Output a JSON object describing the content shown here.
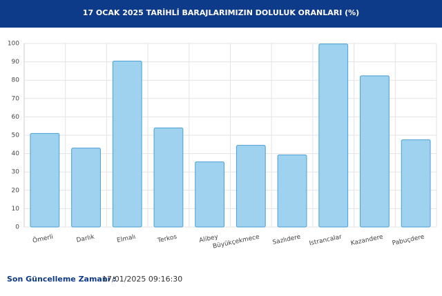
{
  "chart_data": {
    "type": "bar",
    "title": "17 OCAK 2025 TARİHLİ BARAJLARIMIZIN DOLULUK ORANLARI (%)",
    "categories": [
      "Ömerli",
      "Darlık",
      "Elmalı",
      "Terkos",
      "Alibey",
      "Büyükçekmece",
      "Sazlıdere",
      "Istrancalar",
      "Kazandere",
      "Pabuçdere"
    ],
    "values": [
      51,
      43,
      90.4,
      54,
      35.5,
      44.5,
      39.3,
      99.7,
      82.4,
      47.5
    ],
    "color": "#9fd2ef",
    "border_color": "#4a9fd4",
    "ylim": [
      0,
      100
    ],
    "yticks": [
      0,
      10,
      20,
      30,
      40,
      50,
      60,
      70,
      80,
      90,
      100
    ],
    "grid": true
  },
  "footer": {
    "label": "Son Güncelleme Zamanı :",
    "value": "17/01/2025 09:16:30"
  }
}
